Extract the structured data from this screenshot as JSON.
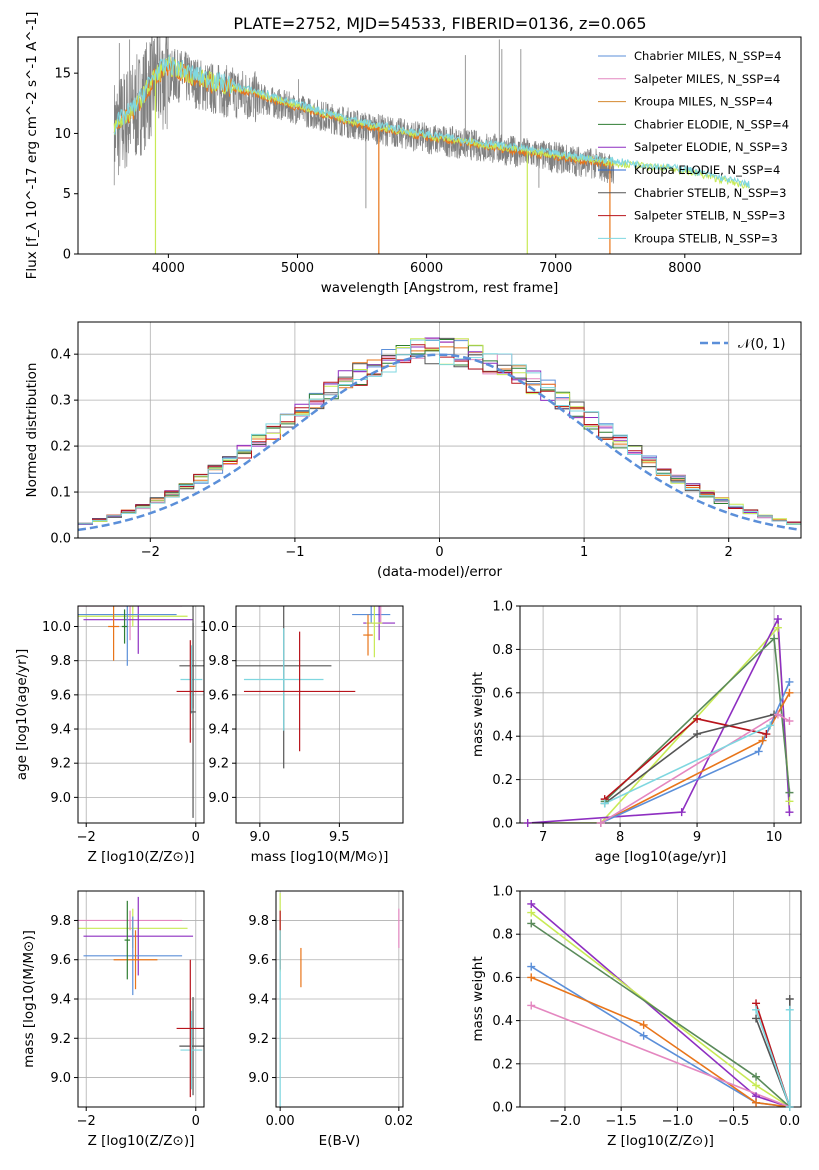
{
  "figure": {
    "title": "PLATE=2752, MJD=54533, FIBERID=0136, z=0.065"
  },
  "palette": {
    "Chabrier MILES": "#5b8fd9",
    "Salpeter MILES": "#e487c0",
    "Kroupa MILES": "#d4882f",
    "Chabrier ELODIE": "#2f7d32",
    "Salpeter ELODIE": "#8e2fc1",
    "Kroupa ELODIE": "#2b6bd6",
    "Chabrier STELIB": "#555555",
    "Salpeter STELIB": "#b8141c",
    "Kroupa STELIB": "#7fd7e0",
    "line_orange": "#e8751a",
    "line_lime": "#c8ea55",
    "line_purple": "#8e2fc1",
    "line_green": "#5a8a5a",
    "line_darkred": "#b8141c",
    "line_gray": "#555555",
    "data_gray": "#808080"
  },
  "chart_data": [
    {
      "id": "spectrum",
      "type": "line",
      "title": "PLATE=2752, MJD=54533, FIBERID=0136, z=0.065",
      "xlabel": "wavelength [Angstrom, rest frame]",
      "ylabel": "Flux [f_λ 10^-17 erg cm^-2 s^-1 A^-1]",
      "xlim": [
        3300,
        8900
      ],
      "ylim": [
        0,
        18
      ],
      "xticks": [
        "4000",
        "5000",
        "6000",
        "7000",
        "8000"
      ],
      "yticks": [
        "0",
        "5",
        "10",
        "15"
      ],
      "grid": false,
      "legend_position": "upper-right",
      "legend": [
        {
          "label": "Chabrier MILES, N_SSP=4",
          "color": "#5b8fd9"
        },
        {
          "label": "Salpeter MILES, N_SSP=4",
          "color": "#e487c0"
        },
        {
          "label": "Kroupa MILES, N_SSP=4",
          "color": "#d4882f"
        },
        {
          "label": "Chabrier ELODIE, N_SSP=4",
          "color": "#2f7d32"
        },
        {
          "label": "Salpeter ELODIE, N_SSP=3",
          "color": "#8e2fc1"
        },
        {
          "label": "Kroupa ELODIE, N_SSP=4",
          "color": "#2b6bd6"
        },
        {
          "label": "Chabrier STELIB, N_SSP=3",
          "color": "#555555"
        },
        {
          "label": "Salpeter STELIB, N_SSP=3",
          "color": "#b8141c"
        },
        {
          "label": "Kroupa STELIB, N_SSP=3",
          "color": "#7fd7e0"
        }
      ],
      "data_continuum": [
        [
          3580,
          10.2
        ],
        [
          3750,
          12.0
        ],
        [
          3900,
          14.5
        ],
        [
          4100,
          14.8
        ],
        [
          4300,
          13.8
        ],
        [
          4600,
          13.2
        ],
        [
          5000,
          12.0
        ],
        [
          5500,
          10.6
        ],
        [
          6000,
          9.6
        ],
        [
          6500,
          8.8
        ],
        [
          7000,
          8.0
        ],
        [
          7300,
          7.5
        ],
        [
          7450,
          7.0
        ]
      ],
      "model_continuum": [
        [
          3580,
          10.5
        ],
        [
          3750,
          12.2
        ],
        [
          3900,
          14.9
        ],
        [
          4000,
          15.6
        ],
        [
          4300,
          14.4
        ],
        [
          4700,
          13.3
        ],
        [
          5000,
          12.3
        ],
        [
          5500,
          10.8
        ],
        [
          6000,
          9.8
        ],
        [
          6500,
          9.0
        ],
        [
          7000,
          8.2
        ],
        [
          7500,
          7.5
        ],
        [
          8000,
          6.9
        ],
        [
          8500,
          5.6
        ]
      ],
      "data_spikes": [
        [
          3620,
          17.5
        ],
        [
          3700,
          17.8
        ],
        [
          3950,
          16.8
        ],
        [
          4050,
          17.0
        ],
        [
          4861,
          12.8
        ],
        [
          5007,
          14.5
        ],
        [
          5530,
          3.8
        ],
        [
          6300,
          16.5
        ],
        [
          6563,
          17.8
        ],
        [
          6583,
          17.0
        ],
        [
          6730,
          17.0
        ],
        [
          6870,
          5.5
        ]
      ]
    },
    {
      "id": "residuals",
      "type": "histogram",
      "xlabel": "(data-model)/error",
      "ylabel": "Normed distribution",
      "xlim": [
        -2.5,
        2.5
      ],
      "ylim": [
        0,
        0.47
      ],
      "xticks": [
        "−2",
        "−1",
        "0",
        "1",
        "2"
      ],
      "yticks": [
        "0.0",
        "0.1",
        "0.2",
        "0.3",
        "0.4"
      ],
      "grid": true,
      "legend_position": "upper-right",
      "legend": [
        {
          "label": "𝒩(0, 1)",
          "color": "#5b8fd9"
        }
      ],
      "bin_width": 0.1,
      "curve": "normal pdf, mean 0, sigma 1"
    },
    {
      "id": "age-vs-Z",
      "type": "errorbar",
      "xlabel": "Z [log10(Z/Z⊙)]",
      "ylabel": "age [log10(age/yr)]",
      "xlim": [
        -2.15,
        0.15
      ],
      "ylim": [
        8.85,
        10.12
      ],
      "xticks": [
        "−2",
        "0"
      ],
      "yticks": [
        "9.0",
        "9.2",
        "9.4",
        "9.6",
        "9.8",
        "10.0"
      ],
      "grid": true,
      "points": [
        {
          "x": -1.15,
          "xerr": 1.0,
          "y": 10.06,
          "yerr": 0.06,
          "color": "#c8ea55"
        },
        {
          "x": -1.2,
          "xerr": 0.95,
          "y": 10.12,
          "yerr": 0.2,
          "color": "#e487c0"
        },
        {
          "x": -1.05,
          "xerr": 1.0,
          "y": 10.04,
          "yerr": 0.2,
          "color": "#8e2fc1"
        },
        {
          "x": -1.25,
          "xerr": 0.9,
          "y": 10.07,
          "yerr": 0.3,
          "color": "#5b8fd9"
        },
        {
          "x": -1.5,
          "xerr": 0.1,
          "y": 10.0,
          "yerr": 0.2,
          "color": "#e8751a"
        },
        {
          "x": -1.3,
          "xerr": 0.05,
          "y": 10.0,
          "yerr": 0.1,
          "color": "#2f7d32"
        },
        {
          "x": -0.05,
          "xerr": 0.25,
          "y": 9.77,
          "yerr": 0.25,
          "color": "#555555"
        },
        {
          "x": -0.08,
          "xerr": 0.2,
          "y": 9.69,
          "yerr": 0.2,
          "color": "#7fd7e0"
        },
        {
          "x": -0.1,
          "xerr": 0.25,
          "y": 9.62,
          "yerr": 0.3,
          "color": "#b8141c"
        },
        {
          "x": -0.05,
          "xerr": 0.05,
          "y": 9.5,
          "yerr": 0.62,
          "color": "#555555"
        }
      ]
    },
    {
      "id": "age-vs-mass",
      "type": "errorbar",
      "xlabel": "mass [log10(M/M⊙)]",
      "ylabel": "",
      "xlim": [
        8.85,
        9.9
      ],
      "ylim": [
        8.85,
        10.12
      ],
      "xticks": [
        "9.0",
        "9.5"
      ],
      "yticks": [
        "9.0",
        "9.2",
        "9.4",
        "9.6",
        "9.8",
        "10.0"
      ],
      "grid": true,
      "points": [
        {
          "x": 9.7,
          "xerr": 0.12,
          "y": 10.07,
          "yerr": 0.05,
          "color": "#5b8fd9"
        },
        {
          "x": 9.76,
          "xerr": 0.06,
          "y": 10.12,
          "yerr": 0.1,
          "color": "#e487c0"
        },
        {
          "x": 9.75,
          "xerr": 0.1,
          "y": 10.02,
          "yerr": 0.1,
          "color": "#8e2fc1"
        },
        {
          "x": 9.72,
          "xerr": 0.05,
          "y": 10.02,
          "yerr": 0.2,
          "color": "#c8ea55"
        },
        {
          "x": 9.68,
          "xerr": 0.03,
          "y": 9.95,
          "yerr": 0.12,
          "color": "#e8751a"
        },
        {
          "x": 9.15,
          "xerr": 0.3,
          "y": 9.77,
          "yerr": 0.6,
          "color": "#555555"
        },
        {
          "x": 9.15,
          "xerr": 0.25,
          "y": 9.69,
          "yerr": 0.3,
          "color": "#7fd7e0"
        },
        {
          "x": 9.25,
          "xerr": 0.35,
          "y": 9.62,
          "yerr": 0.35,
          "color": "#b8141c"
        }
      ]
    },
    {
      "id": "weight-vs-age",
      "type": "line",
      "xlabel": "age [log10(age/yr)]",
      "ylabel": "mass weight",
      "xlim": [
        6.7,
        10.35
      ],
      "ylim": [
        0,
        1.0
      ],
      "xticks": [
        "7",
        "8",
        "9",
        "10"
      ],
      "yticks": [
        "0.0",
        "0.2",
        "0.4",
        "0.6",
        "0.8",
        "1.0"
      ],
      "grid": true,
      "series": [
        {
          "color": "#c8ea55",
          "x": [
            6.8,
            7.75,
            10.05,
            10.2
          ],
          "y": [
            0.0,
            0.0,
            0.9,
            0.1
          ]
        },
        {
          "color": "#8e2fc1",
          "x": [
            6.8,
            8.8,
            10.05,
            10.2
          ],
          "y": [
            0.0,
            0.05,
            0.94,
            0.05
          ]
        },
        {
          "color": "#5a8a5a",
          "x": [
            7.8,
            10.0,
            10.2
          ],
          "y": [
            0.1,
            0.85,
            0.14
          ]
        },
        {
          "color": "#b8141c",
          "x": [
            7.8,
            9.0,
            9.9
          ],
          "y": [
            0.11,
            0.48,
            0.41
          ]
        },
        {
          "color": "#555555",
          "x": [
            7.8,
            9.0,
            10.0
          ],
          "y": [
            0.09,
            0.41,
            0.5
          ]
        },
        {
          "color": "#e8751a",
          "x": [
            7.75,
            9.85,
            10.2
          ],
          "y": [
            0.0,
            0.38,
            0.6
          ]
        },
        {
          "color": "#5b8fd9",
          "x": [
            7.75,
            9.8,
            10.2
          ],
          "y": [
            0.0,
            0.33,
            0.65
          ]
        },
        {
          "color": "#e487c0",
          "x": [
            7.75,
            10.05,
            10.2
          ],
          "y": [
            0.0,
            0.5,
            0.47
          ]
        },
        {
          "color": "#7fd7e0",
          "x": [
            7.8,
            9.95
          ],
          "y": [
            0.09,
            0.45
          ]
        }
      ]
    },
    {
      "id": "mass-vs-Z",
      "type": "errorbar",
      "xlabel": "Z [log10(Z/Z⊙)]",
      "ylabel": "mass [log10(M/M⊙)]",
      "xlim": [
        -2.15,
        0.15
      ],
      "ylim": [
        8.85,
        9.95
      ],
      "xticks": [
        "−2",
        "0"
      ],
      "yticks": [
        "9.0",
        "9.2",
        "9.4",
        "9.6",
        "9.8"
      ],
      "grid": true,
      "points": [
        {
          "x": -1.15,
          "xerr": 1.0,
          "y": 9.76,
          "yerr": 0.1,
          "color": "#c8ea55"
        },
        {
          "x": -1.2,
          "xerr": 0.95,
          "y": 9.8,
          "yerr": 0.05,
          "color": "#e487c0"
        },
        {
          "x": -1.05,
          "xerr": 1.0,
          "y": 9.72,
          "yerr": 0.2,
          "color": "#8e2fc1"
        },
        {
          "x": -1.15,
          "xerr": 0.9,
          "y": 9.62,
          "yerr": 0.2,
          "color": "#5b8fd9"
        },
        {
          "x": -1.1,
          "xerr": 0.4,
          "y": 9.6,
          "yerr": 0.15,
          "color": "#e8751a"
        },
        {
          "x": -1.25,
          "xerr": 0.05,
          "y": 9.7,
          "yerr": 0.2,
          "color": "#2f7d32"
        },
        {
          "x": -0.05,
          "xerr": 0.25,
          "y": 9.16,
          "yerr": 0.25,
          "color": "#555555"
        },
        {
          "x": -0.08,
          "xerr": 0.2,
          "y": 9.14,
          "yerr": 0.2,
          "color": "#7fd7e0"
        },
        {
          "x": -0.1,
          "xerr": 0.25,
          "y": 9.25,
          "yerr": 0.35,
          "color": "#b8141c"
        }
      ]
    },
    {
      "id": "mass-vs-ebv",
      "type": "errorbar",
      "xlabel": "E(B-V)",
      "ylabel": "",
      "xlim": [
        -0.0007,
        0.0207
      ],
      "ylim": [
        8.85,
        9.95
      ],
      "xticks": [
        "0.00",
        "0.02"
      ],
      "yticks": [
        "9.0",
        "9.2",
        "9.4",
        "9.6",
        "9.8"
      ],
      "grid": true,
      "points": [
        {
          "x": 0.0,
          "y": 9.74,
          "yerr": 0.2,
          "color": "#c8ea55"
        },
        {
          "x": 0.0,
          "y": 9.7,
          "yerr": 0.15,
          "color": "#b8141c"
        },
        {
          "x": 0.0,
          "y": 9.3,
          "yerr": 0.45,
          "color": "#7fd7e0"
        },
        {
          "x": 0.0035,
          "y": 9.56,
          "yerr": 0.1,
          "color": "#e8751a"
        },
        {
          "x": 0.02,
          "y": 9.76,
          "yerr": 0.1,
          "color": "#e487c0"
        }
      ]
    },
    {
      "id": "weight-vs-Z",
      "type": "line",
      "xlabel": "Z [log10(Z/Z⊙)]",
      "ylabel": "mass weight",
      "xlim": [
        -2.4,
        0.1
      ],
      "ylim": [
        0,
        1.0
      ],
      "xticks": [
        "−2.0",
        "−1.5",
        "−1.0",
        "−0.5",
        "0.0"
      ],
      "yticks": [
        "0.0",
        "0.2",
        "0.4",
        "0.6",
        "0.8",
        "1.0"
      ],
      "grid": true,
      "series": [
        {
          "color": "#8e2fc1",
          "x": [
            -2.3,
            -0.3,
            0.0
          ],
          "y": [
            0.94,
            0.05,
            0.0
          ]
        },
        {
          "color": "#c8ea55",
          "x": [
            -2.3,
            -0.3,
            0.0
          ],
          "y": [
            0.9,
            0.1,
            0.0
          ]
        },
        {
          "color": "#5a8a5a",
          "x": [
            -2.3,
            -0.3,
            0.0
          ],
          "y": [
            0.85,
            0.14,
            0.0
          ]
        },
        {
          "color": "#5b8fd9",
          "x": [
            -2.3,
            -1.3,
            -0.3,
            0.0
          ],
          "y": [
            0.65,
            0.33,
            0.02,
            0.0
          ]
        },
        {
          "color": "#e8751a",
          "x": [
            -2.3,
            -1.3,
            -0.3,
            0.0
          ],
          "y": [
            0.6,
            0.38,
            0.02,
            0.0
          ]
        },
        {
          "color": "#e487c0",
          "x": [
            -2.3,
            0.0
          ],
          "y": [
            0.47,
            0.0
          ]
        },
        {
          "color": "#b8141c",
          "x": [
            -0.3,
            0.0
          ],
          "y": [
            0.48,
            0.0
          ]
        },
        {
          "color": "#555555",
          "x": [
            -0.3,
            0.0,
            0.0
          ],
          "y": [
            0.41,
            0.0,
            0.5
          ]
        },
        {
          "color": "#7fd7e0",
          "x": [
            -0.3,
            0.0,
            0.0
          ],
          "y": [
            0.45,
            0.0,
            0.45
          ]
        }
      ]
    }
  ]
}
